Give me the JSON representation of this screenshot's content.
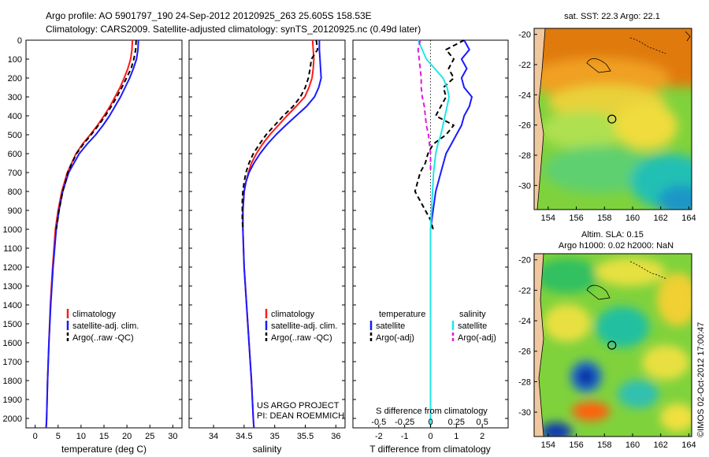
{
  "header": {
    "line1": "Argo profile: AO 5901797_190 24-Sep-2012 20120925_263 25.605S 158.53E",
    "line2": "Climatology: CARS2009. Satellite-adjusted climatology: synTS_20120925.nc (0.49d later)"
  },
  "colors": {
    "climatology": "#ff1a1a",
    "satellite": "#1a1aff",
    "argo": "#000000",
    "s_satellite": "#22e6e6",
    "s_argo": "#e01ae0"
  },
  "depth_axis": {
    "ylim": [
      0,
      2050
    ],
    "ticks": [
      "0",
      "100",
      "200",
      "300",
      "400",
      "500",
      "600",
      "700",
      "800",
      "900",
      "1000",
      "1100",
      "1200",
      "1300",
      "1400",
      "1500",
      "1600",
      "1700",
      "1800",
      "1900",
      "2000"
    ],
    "ytick_values": [
      0,
      100,
      200,
      300,
      400,
      500,
      600,
      700,
      800,
      900,
      1000,
      1100,
      1200,
      1300,
      1400,
      1500,
      1600,
      1700,
      1800,
      1900,
      2000
    ]
  },
  "chart_data": [
    {
      "type": "line",
      "xlabel": "temperature (deg C)",
      "xlim": [
        -2,
        32
      ],
      "xticks": [
        0,
        5,
        10,
        15,
        20,
        25,
        30
      ],
      "xtick_labels": [
        "0",
        "5",
        "10",
        "15",
        "20",
        "25",
        "30"
      ],
      "legend": {
        "placement": "lower-center",
        "items": [
          "climatology",
          "satellite-adj. clim.",
          "Argo(..raw -QC)"
        ]
      },
      "series": [
        {
          "name": "climatology",
          "color_key": "climatology",
          "dash": "",
          "depth": [
            0,
            50,
            100,
            150,
            200,
            250,
            300,
            350,
            400,
            450,
            500,
            550,
            600,
            700,
            800,
            900,
            1000,
            1200,
            1400,
            1600,
            1800,
            2000,
            2050
          ],
          "values": [
            21.2,
            21.1,
            20.8,
            20.2,
            19.4,
            18.5,
            17.4,
            16.3,
            15.0,
            13.6,
            12.0,
            10.3,
            8.9,
            7.0,
            5.8,
            5.0,
            4.4,
            3.8,
            3.3,
            3.0,
            2.7,
            2.5,
            2.4
          ]
        },
        {
          "name": "satellite-adj. clim.",
          "color_key": "satellite",
          "dash": "",
          "depth": [
            0,
            50,
            100,
            150,
            200,
            250,
            300,
            350,
            400,
            450,
            500,
            550,
            600,
            700,
            800,
            900,
            1000,
            1200,
            1400,
            1600,
            1800,
            2000,
            2050
          ],
          "values": [
            22.5,
            22.4,
            22.1,
            21.4,
            20.6,
            19.6,
            18.6,
            17.4,
            16.2,
            14.8,
            13.2,
            11.3,
            9.6,
            7.3,
            6.0,
            5.2,
            4.6,
            3.9,
            3.4,
            3.0,
            2.7,
            2.5,
            2.4
          ]
        },
        {
          "name": "Argo(..raw -QC)",
          "color_key": "argo",
          "dash": "6 4",
          "depth": [
            0,
            50,
            100,
            150,
            200,
            250,
            300,
            350,
            400,
            450,
            500,
            550,
            600,
            650,
            700,
            750,
            800,
            850,
            900,
            950,
            1000
          ],
          "values": [
            22.0,
            21.9,
            21.5,
            20.9,
            19.9,
            18.9,
            17.8,
            16.6,
            15.3,
            13.8,
            12.2,
            10.5,
            9.0,
            8.0,
            7.1,
            6.6,
            6.0,
            5.6,
            5.2,
            4.9,
            4.6
          ]
        }
      ]
    },
    {
      "type": "line",
      "xlabel": "salinity",
      "xlim": [
        33.6,
        36.15
      ],
      "xticks": [
        34,
        34.5,
        35,
        35.5,
        36
      ],
      "xtick_labels": [
        "34",
        "34.5",
        "35",
        "35.5",
        "36"
      ],
      "legend": {
        "placement": "lower-center",
        "items": [
          "climatology",
          "satellite-adj. clim.",
          "Argo(..raw -QC)"
        ]
      },
      "annotation": [
        "US ARGO PROJECT",
        "PI: DEAN ROEMMICH"
      ],
      "series": [
        {
          "name": "climatology",
          "color_key": "climatology",
          "dash": "",
          "depth": [
            0,
            50,
            100,
            150,
            200,
            250,
            300,
            350,
            400,
            450,
            500,
            550,
            600,
            650,
            700,
            750,
            800,
            900,
            1000,
            1200,
            1400,
            1600,
            1800,
            2000,
            2050
          ],
          "values": [
            35.62,
            35.63,
            35.64,
            35.63,
            35.61,
            35.56,
            35.49,
            35.35,
            35.2,
            35.06,
            34.92,
            34.8,
            34.7,
            34.62,
            34.57,
            34.53,
            34.5,
            34.48,
            34.48,
            34.5,
            34.54,
            34.58,
            34.62,
            34.65,
            34.66
          ]
        },
        {
          "name": "satellite-adj. clim.",
          "color_key": "satellite",
          "dash": "",
          "depth": [
            0,
            50,
            100,
            150,
            200,
            250,
            300,
            350,
            400,
            450,
            500,
            550,
            600,
            650,
            700,
            750,
            800,
            900,
            1000,
            1200,
            1400,
            1600,
            1800,
            2000,
            2050
          ],
          "values": [
            35.73,
            35.73,
            35.74,
            35.75,
            35.76,
            35.72,
            35.65,
            35.52,
            35.35,
            35.18,
            35.02,
            34.88,
            34.76,
            34.66,
            34.58,
            34.53,
            34.5,
            34.48,
            34.48,
            34.5,
            34.54,
            34.58,
            34.62,
            34.65,
            34.66
          ]
        },
        {
          "name": "Argo(..raw -QC)",
          "color_key": "argo",
          "dash": "6 4",
          "depth": [
            0,
            50,
            100,
            150,
            200,
            250,
            300,
            350,
            400,
            450,
            500,
            550,
            600,
            650,
            700,
            750,
            800,
            850,
            900,
            950,
            1000
          ],
          "values": [
            35.68,
            35.7,
            35.6,
            35.58,
            35.55,
            35.5,
            35.42,
            35.3,
            35.14,
            35.0,
            34.86,
            34.75,
            34.65,
            34.58,
            34.53,
            34.5,
            34.48,
            34.47,
            34.47,
            34.47,
            34.48
          ]
        }
      ]
    },
    {
      "type": "line",
      "xlabel": "T difference from climatology",
      "xlabel_top": "S difference from climatology",
      "xlim": [
        -3,
        3
      ],
      "xticks": [
        -2,
        -1,
        0,
        1,
        2
      ],
      "xtick_labels": [
        "-2",
        "-1",
        "0",
        "1",
        "2"
      ],
      "sticks": [
        -0.5,
        -0.25,
        0,
        0.25,
        0.5
      ],
      "stick_labels": [
        "-0.5",
        "-0.25",
        "0",
        "0.25",
        "0.5"
      ],
      "legend": {
        "placement": "lower-center",
        "headers": [
          "temperature",
          "salinity"
        ],
        "items": [
          "satellite",
          "Argo(-adj)",
          "satellite",
          "Argo(-adj)"
        ]
      },
      "series": [
        {
          "name": "satellite",
          "group": "temperature",
          "color_key": "satellite",
          "dash": "",
          "depth": [
            0,
            50,
            100,
            150,
            200,
            250,
            300,
            350,
            400,
            450,
            500,
            550,
            600,
            700,
            800,
            900,
            1000,
            1200,
            1400,
            1600,
            1800,
            2000,
            2050
          ],
          "values": [
            1.3,
            1.5,
            1.2,
            1.4,
            1.2,
            1.3,
            1.6,
            1.5,
            1.3,
            1.2,
            1.0,
            0.8,
            0.6,
            0.4,
            0.2,
            0.1,
            0.0,
            0.0,
            0.0,
            0.0,
            0.0,
            0.0,
            0.0
          ]
        },
        {
          "name": "Argo(-adj)",
          "group": "temperature",
          "color_key": "argo",
          "dash": "6 4",
          "depth": [
            0,
            50,
            100,
            150,
            200,
            250,
            300,
            350,
            400,
            450,
            500,
            550,
            600,
            650,
            700,
            750,
            800,
            850,
            900,
            950,
            1000
          ],
          "values": [
            1.3,
            0.6,
            0.9,
            0.7,
            0.9,
            0.5,
            0.6,
            0.4,
            0.2,
            0.9,
            0.6,
            0.1,
            -0.1,
            -0.2,
            -0.4,
            -0.5,
            -0.6,
            -0.4,
            -0.2,
            0.0,
            0.1
          ]
        },
        {
          "name": "satellite",
          "group": "salinity",
          "color_key": "s_satellite",
          "dash": "",
          "depth": [
            0,
            50,
            100,
            150,
            200,
            250,
            300,
            350,
            400,
            450,
            500,
            550,
            600,
            650,
            700,
            800,
            900,
            1000,
            1200,
            1400,
            1600,
            1800,
            2000,
            2050
          ],
          "values": [
            -0.12,
            -0.08,
            -0.04,
            0.04,
            0.12,
            0.16,
            0.18,
            0.16,
            0.14,
            0.12,
            0.1,
            0.07,
            0.05,
            0.04,
            0.03,
            0.02,
            0.01,
            0.0,
            0.0,
            0.0,
            0.0,
            0.0,
            0.0,
            0.0
          ]
        },
        {
          "name": "Argo(-adj)",
          "group": "salinity",
          "color_key": "s_argo",
          "dash": "6 4",
          "depth": [
            0,
            50,
            100,
            150,
            200,
            250,
            300,
            350,
            400,
            450,
            500,
            550,
            600,
            650,
            700
          ],
          "values": [
            -0.1,
            -0.12,
            -0.11,
            -0.1,
            -0.09,
            -0.09,
            -0.08,
            -0.06,
            -0.05,
            -0.04,
            -0.02,
            -0.01,
            0.0,
            0.0,
            0.0
          ]
        }
      ]
    }
  ],
  "map_sst": {
    "title": "sat. SST: 22.3  Argo: 22.1",
    "xticks": [
      "154",
      "156",
      "158",
      "160",
      "162",
      "164"
    ],
    "yticks": [
      "-20",
      "-22",
      "-24",
      "-26",
      "-28",
      "-30"
    ],
    "xlim": [
      153,
      164.2
    ],
    "ylim": [
      -31.6,
      -19.6
    ],
    "profile": {
      "lon": 158.53,
      "lat": -25.605
    }
  },
  "map_sla": {
    "title_line1": "Altim. SLA: 0.15",
    "title_line2": "Argo h1000: 0.02  h2000: NaN",
    "xticks": [
      "154",
      "156",
      "158",
      "160",
      "162",
      "164"
    ],
    "yticks": [
      "-20",
      "-22",
      "-24",
      "-26",
      "-28",
      "-30"
    ],
    "xlim": [
      153,
      164.2
    ],
    "ylim": [
      -31.6,
      -19.6
    ],
    "profile": {
      "lon": 158.53,
      "lat": -25.605
    }
  },
  "watermark": "©IMOS 02-Oct-2012 17:00:47"
}
